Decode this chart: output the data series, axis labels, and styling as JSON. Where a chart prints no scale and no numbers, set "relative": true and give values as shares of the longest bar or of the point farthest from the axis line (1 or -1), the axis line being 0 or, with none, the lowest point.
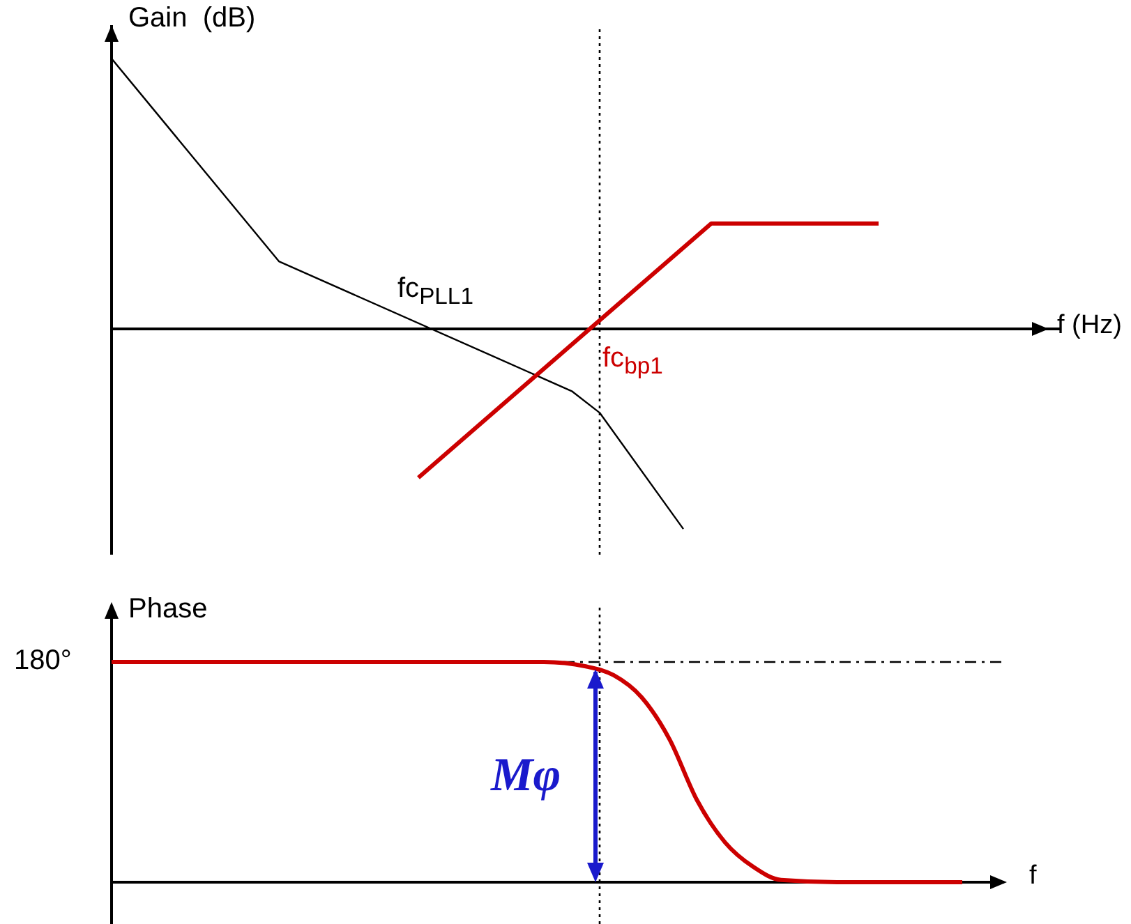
{
  "chart_data": [
    {
      "type": "line",
      "relative": true,
      "ylabel": "Gain  (dB)",
      "xlabel": "f (Hz)",
      "grid": false,
      "legend": false,
      "marker": "none",
      "categories": [
        null,
        null,
        null,
        null,
        null,
        null,
        null,
        null,
        null,
        null,
        null,
        null,
        null,
        null,
        null,
        null,
        null,
        null,
        null,
        null,
        null,
        null,
        null,
        null,
        null,
        null,
        null,
        null,
        null,
        null,
        null,
        null,
        null,
        null,
        null,
        null,
        null,
        null,
        null,
        null,
        null,
        null,
        null,
        null,
        null,
        null,
        null,
        null,
        null,
        null,
        null,
        null,
        null,
        null,
        null,
        null,
        null,
        null,
        null,
        null,
        null,
        null,
        null,
        null,
        null,
        null,
        null,
        null,
        null
      ],
      "series": [
        {
          "color": "#000000",
          "values": [
            1,
            null,
            null,
            null,
            null,
            null,
            null,
            null,
            null,
            null,
            null,
            null,
            0.25,
            null,
            null,
            null,
            null,
            null,
            null,
            null,
            null,
            null,
            null,
            null,
            null,
            null,
            null,
            null,
            null,
            null,
            null,
            null,
            null,
            -0.23,
            null,
            -0.31,
            null,
            null,
            null,
            null,
            null,
            -0.74,
            null,
            null,
            null,
            null,
            null,
            null,
            null,
            null,
            null,
            null,
            null,
            null,
            null,
            null,
            null,
            null,
            null,
            null,
            null,
            null,
            null,
            null,
            null,
            null,
            null,
            null,
            null
          ]
        },
        {
          "color": "#cc0000",
          "values": [
            null,
            null,
            null,
            null,
            null,
            null,
            null,
            null,
            null,
            null,
            null,
            null,
            null,
            null,
            null,
            null,
            null,
            null,
            null,
            null,
            null,
            null,
            -0.55,
            null,
            null,
            null,
            null,
            null,
            null,
            null,
            null,
            null,
            null,
            null,
            null,
            null,
            null,
            null,
            null,
            null,
            null,
            null,
            null,
            0.39,
            null,
            null,
            null,
            null,
            null,
            null,
            null,
            null,
            null,
            null,
            null,
            0.39,
            null,
            null,
            null,
            null,
            null,
            null,
            null,
            null,
            null,
            null,
            null,
            null,
            null
          ]
        }
      ],
      "annotations": [
        "fc$_{PLL1}$",
        "fc$_{bp1}$"
      ]
    },
    {
      "type": "line",
      "relative": true,
      "ylabel": "Phase",
      "xlabel": "f",
      "grid": false,
      "legend": false,
      "marker": "none",
      "categories": [
        null,
        null,
        null,
        null,
        null,
        null,
        null,
        null,
        null,
        null,
        null,
        null,
        null,
        null,
        null,
        null,
        null,
        null,
        null,
        null,
        null,
        null,
        null,
        null,
        null,
        null,
        null,
        null,
        null,
        null,
        null,
        null,
        null,
        null,
        null,
        null,
        null,
        null,
        null,
        null,
        null,
        null,
        null,
        null,
        null,
        null,
        null,
        null,
        null,
        null,
        null,
        null,
        null,
        null,
        null,
        null,
        null,
        null,
        null,
        null,
        null,
        null,
        null,
        null,
        null
      ],
      "series": [
        {
          "color": "#cc0000",
          "values": [
            1,
            null,
            null,
            null,
            null,
            null,
            null,
            null,
            null,
            null,
            null,
            null,
            null,
            null,
            null,
            null,
            null,
            null,
            null,
            null,
            null,
            null,
            null,
            null,
            null,
            null,
            null,
            null,
            null,
            null,
            null,
            1,
            null,
            null,
            0.98,
            null,
            0.94,
            null,
            0.84,
            null,
            0.65,
            null,
            0.37,
            null,
            0.18,
            null,
            0.07,
            null,
            0.01,
            null,
            null,
            null,
            0,
            null,
            null,
            null,
            null,
            null,
            null,
            null,
            null,
            0,
            null,
            null,
            null
          ]
        }
      ],
      "ref_lines": [
        {
          "axis": "y",
          "value": 1,
          "line_style": "dashed",
          "color": "#000000"
        }
      ],
      "annotations": [
        "Mφ",
        "180°"
      ]
    }
  ]
}
